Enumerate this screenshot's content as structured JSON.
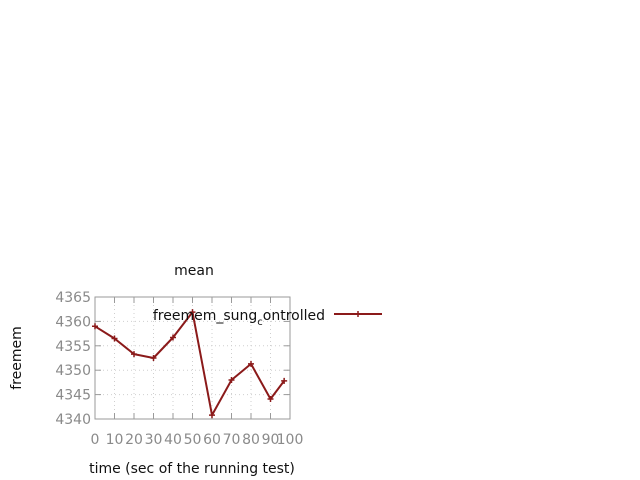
{
  "chart_data": {
    "type": "line",
    "title": "mean",
    "xlabel": "time (sec of the running test)",
    "ylabel": "freemem",
    "xlim": [
      0,
      100
    ],
    "ylim": [
      4340,
      4365
    ],
    "xticks": [
      0,
      10,
      20,
      30,
      40,
      50,
      60,
      70,
      80,
      90,
      100
    ],
    "yticks": [
      4340,
      4345,
      4350,
      4355,
      4360,
      4365
    ],
    "grid": true,
    "legend_position": "top-right",
    "series": [
      {
        "name_parts": [
          "freemem_sung",
          "c",
          "ontrolled"
        ],
        "color": "#8b1a1a",
        "marker": "plus",
        "x": [
          0,
          10,
          20,
          30,
          40,
          50,
          60,
          70,
          80,
          90,
          97
        ],
        "y": [
          4359.0,
          4356.5,
          4353.3,
          4352.5,
          4356.7,
          4361.9,
          4340.8,
          4348.0,
          4351.3,
          4344.1,
          4347.8
        ]
      }
    ]
  }
}
